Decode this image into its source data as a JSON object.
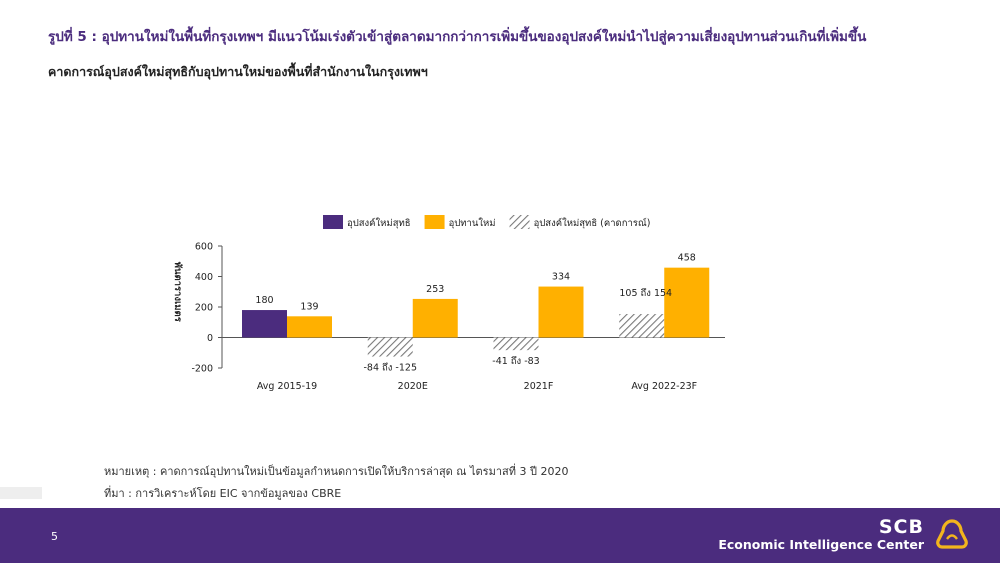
{
  "header": {
    "title": "รูปที่ 5 : อุปทานใหม่ในพื้นที่กรุงเทพฯ มีแนวโน้มเร่งตัวเข้าสู่ตลาดมากกว่าการเพิ่มขึ้นของอุปสงค์ใหม่นำไปสู่ความเสี่ยงอุปทานส่วนเกินที่เพิ่มขึ้น",
    "subtitle": "คาดการณ์อุปสงค์ใหม่สุทธิกับอุปทานใหม่ของพื้นที่สำนักงานในกรุงเทพฯ"
  },
  "chart_data": {
    "type": "bar",
    "ylabel": "พันตารางเมตร",
    "ylim": [
      -200,
      600
    ],
    "yticks": [
      -200,
      0,
      200,
      400,
      600
    ],
    "categories": [
      "Avg 2015-19",
      "2020E",
      "2021F",
      "Avg 2022-23F"
    ],
    "series": [
      {
        "name": "อุปสงค์ใหม่สุทธิ",
        "color": "#4b2c7e",
        "values": [
          180,
          null,
          null,
          null
        ],
        "labels": [
          "180",
          "",
          "",
          ""
        ]
      },
      {
        "name": "อุปทานใหม่",
        "color": "#ffb000",
        "values": [
          139,
          253,
          334,
          458
        ],
        "labels": [
          "139",
          "253",
          "334",
          "458"
        ]
      },
      {
        "name": "อุปสงค์ใหม่สุทธิ (คาดการณ์)",
        "color": "#8c8c8c",
        "pattern": "hatched",
        "values": [
          null,
          [
            -125,
            -84
          ],
          [
            -83,
            -41
          ],
          [
            105,
            154
          ]
        ],
        "labels": [
          "",
          "-84 ถึง -125",
          "-41 ถึง -83",
          "105 ถึง 154"
        ]
      }
    ],
    "legend_position": "top",
    "grid": false
  },
  "notes": {
    "remark": "หมายเหตุ : คาดการณ์อุปทานใหม่เป็นข้อมูลกำหนดการเปิดให้บริการล่าสุด ณ ไตรมาสที่ 3 ปี 2020",
    "source": "ที่มา : การวิเคราะห์โดย EIC จากข้อมูลของ CBRE"
  },
  "footer": {
    "page_number": "5",
    "brand_name": "SCB",
    "brand_subtitle": "Economic Intelligence Center",
    "logo_icon": "scb-shell-logo-icon"
  }
}
